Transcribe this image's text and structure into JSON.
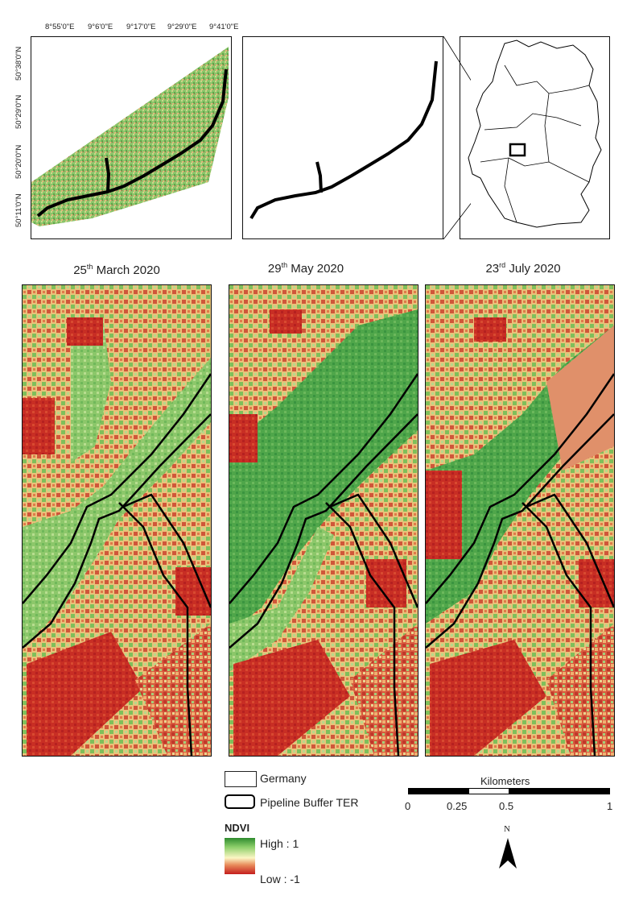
{
  "inset_maps": {
    "longitude_ticks": [
      "8°55'0\"E",
      "9°6'0\"E",
      "9°17'0\"E",
      "9°29'0\"E",
      "9°41'0\"E"
    ],
    "latitude_ticks": [
      "50°38'0\"N",
      "50°29'0\"N",
      "50°20'0\"N",
      "50°11'0\"N"
    ]
  },
  "panels": [
    {
      "day": "25",
      "suffix": "th",
      "rest": " March 2020"
    },
    {
      "day": "29",
      "suffix": "th",
      "rest": " May 2020"
    },
    {
      "day": "23",
      "suffix": "rd",
      "rest": " July 2020"
    }
  ],
  "legend": {
    "germany_label": "Germany",
    "pipeline_label": "Pipeline Buffer TER",
    "ndvi_title": "NDVI",
    "high_label": "High : 1",
    "low_label": "Low : -1",
    "colors": {
      "high": "#2e8b2e",
      "mid": "#fbf6c4",
      "low": "#c41e1e"
    }
  },
  "scalebar": {
    "title": "Kilometers",
    "ticks": [
      "0",
      "0.25",
      "0.5",
      "1"
    ]
  },
  "north_arrow": {
    "label": "N"
  }
}
